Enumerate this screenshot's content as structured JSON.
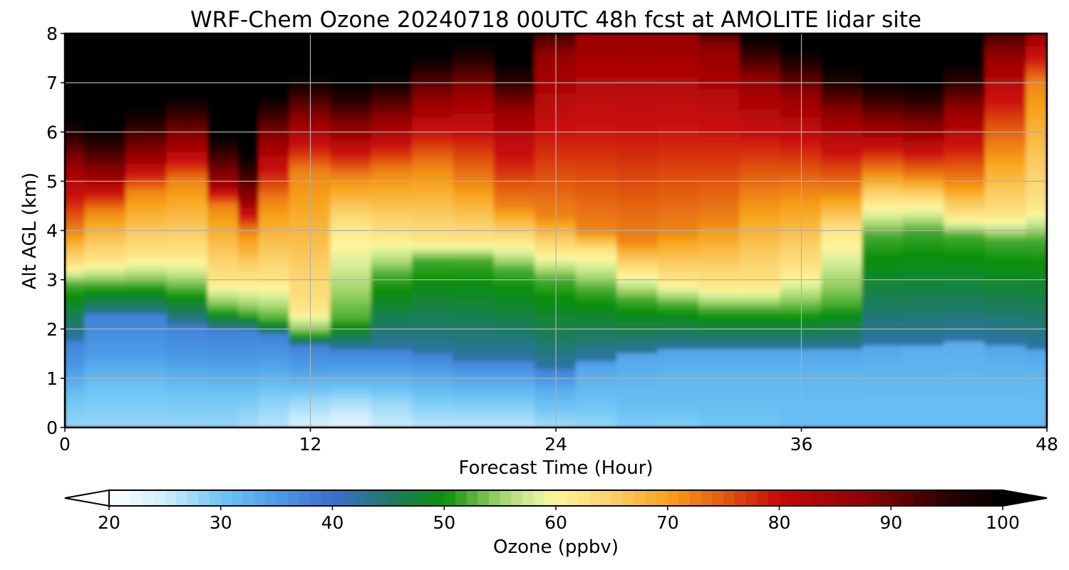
{
  "chart_data": {
    "type": "heatmap",
    "title": "WRF-Chem Ozone  20240718 00UTC 48h fcst at AMOLITE lidar site",
    "xlabel": "Forecast Time (Hour)",
    "ylabel": "Alt AGL (km)",
    "xlim": [
      0,
      48
    ],
    "ylim": [
      0,
      8
    ],
    "x_ticks": [
      "0",
      "12",
      "24",
      "36",
      "48"
    ],
    "y_ticks": [
      "0",
      "1",
      "2",
      "3",
      "4",
      "5",
      "6",
      "7",
      "8"
    ],
    "grid": true,
    "z_label": "Ozone  (ppbv)",
    "z_range": [
      20,
      100
    ],
    "z_ticks": [
      "20",
      "30",
      "40",
      "50",
      "60",
      "70",
      "80",
      "90",
      "100"
    ],
    "colorbar_extend": "both",
    "colormap": [
      {
        "value": 20,
        "color": "#ffffff"
      },
      {
        "value": 25,
        "color": "#cfeefd"
      },
      {
        "value": 30,
        "color": "#6ec6f5"
      },
      {
        "value": 35,
        "color": "#4c9be6"
      },
      {
        "value": 40,
        "color": "#3a6fd0"
      },
      {
        "value": 45,
        "color": "#1f7a6a"
      },
      {
        "value": 50,
        "color": "#0a8f0a"
      },
      {
        "value": 55,
        "color": "#9fd36a"
      },
      {
        "value": 58,
        "color": "#d9f09a"
      },
      {
        "value": 60,
        "color": "#fff59a"
      },
      {
        "value": 65,
        "color": "#fbd06a"
      },
      {
        "value": 70,
        "color": "#f7a21a"
      },
      {
        "value": 75,
        "color": "#e25a10"
      },
      {
        "value": 80,
        "color": "#c80808"
      },
      {
        "value": 88,
        "color": "#8a0404"
      },
      {
        "value": 95,
        "color": "#2a0000"
      },
      {
        "value": 100,
        "color": "#000000"
      }
    ],
    "x_hours": [
      0,
      2,
      4,
      6,
      8,
      9,
      10,
      12,
      14,
      16,
      18,
      20,
      22,
      24,
      26,
      28,
      30,
      32,
      34,
      36,
      38,
      40,
      42,
      44,
      46,
      48
    ],
    "altitudes_km": [
      0,
      0.25,
      0.5,
      0.75,
      1,
      1.25,
      1.5,
      1.75,
      2,
      2.25,
      2.5,
      2.75,
      3,
      3.25,
      3.5,
      3.75,
      4,
      4.25,
      4.5,
      4.75,
      5,
      5.25,
      5.5,
      5.75,
      6,
      6.25,
      6.5,
      6.75,
      7,
      7.25,
      7.5,
      7.75,
      8
    ],
    "profiles": [
      {
        "hour": 0,
        "z": [
          28,
          30,
          35,
          38
        ]
      },
      {
        "hour": 2,
        "z": [
          28,
          30,
          35,
          38
        ]
      },
      {
        "hour": 4,
        "z": [
          28,
          30,
          35,
          38
        ]
      },
      {
        "hour": 6,
        "z": [
          28,
          30,
          35,
          38
        ]
      },
      {
        "hour": 8,
        "z": [
          28,
          30,
          35,
          38
        ]
      },
      {
        "hour": 9,
        "z": [
          27,
          30,
          35,
          38
        ]
      },
      {
        "hour": 10,
        "z": [
          26,
          29,
          34,
          38
        ]
      },
      {
        "hour": 12,
        "z": [
          24,
          28,
          34,
          38
        ]
      },
      {
        "hour": 14,
        "z": [
          23,
          27,
          33,
          38
        ]
      },
      {
        "hour": 16,
        "z": [
          25,
          28,
          33,
          38
        ]
      },
      {
        "hour": 18,
        "z": [
          26,
          29,
          33,
          38
        ]
      },
      {
        "hour": 20,
        "z": [
          26,
          29,
          33,
          38
        ]
      },
      {
        "hour": 22,
        "z": [
          26,
          29,
          33,
          38
        ]
      },
      {
        "hour": 24,
        "z": [
          27,
          30,
          33,
          38
        ]
      },
      {
        "hour": 26,
        "z": [
          28,
          30,
          32,
          35
        ]
      },
      {
        "hour": 28,
        "z": [
          29,
          31,
          32,
          34
        ]
      },
      {
        "hour": 30,
        "z": [
          29,
          31,
          32,
          34
        ]
      },
      {
        "hour": 32,
        "z": [
          30,
          31,
          32,
          34
        ]
      },
      {
        "hour": 34,
        "z": [
          30,
          31,
          32,
          34
        ]
      },
      {
        "hour": 36,
        "z": [
          31,
          31,
          32,
          34
        ]
      },
      {
        "hour": 38,
        "z": [
          31,
          31,
          32,
          34
        ]
      },
      {
        "hour": 40,
        "z": [
          31,
          31,
          32,
          34
        ]
      },
      {
        "hour": 42,
        "z": [
          31,
          31,
          32,
          33
        ]
      },
      {
        "hour": 44,
        "z": [
          31,
          31,
          32,
          33
        ]
      },
      {
        "hour": 46,
        "z": [
          31,
          31,
          32,
          34
        ]
      },
      {
        "hour": 48,
        "z": [
          31,
          31,
          32,
          34
        ]
      }
    ],
    "transitions_km": [
      {
        "hour": 0,
        "blue_top": 1.8,
        "green_top": 2.9,
        "yellow_top": 3.3,
        "orange_top": 4.0,
        "red_top": 5.3
      },
      {
        "hour": 2,
        "blue_top": 2.3,
        "green_top": 2.9,
        "yellow_top": 3.4,
        "orange_top": 4.4,
        "red_top": 5.1
      },
      {
        "hour": 4,
        "blue_top": 2.3,
        "green_top": 2.9,
        "yellow_top": 3.5,
        "orange_top": 4.8,
        "red_top": 5.5
      },
      {
        "hour": 6,
        "blue_top": 2.1,
        "green_top": 2.8,
        "yellow_top": 3.5,
        "orange_top": 5.0,
        "red_top": 5.8
      },
      {
        "hour": 8,
        "blue_top": 2.0,
        "green_top": 2.4,
        "yellow_top": 3.0,
        "orange_top": 4.5,
        "red_top": 5.0
      },
      {
        "hour": 9,
        "blue_top": 2.0,
        "green_top": 2.3,
        "yellow_top": 3.0,
        "orange_top": 4.0,
        "red_top": 4.6
      },
      {
        "hour": 10,
        "blue_top": 1.9,
        "green_top": 2.2,
        "yellow_top": 3.0,
        "orange_top": 4.6,
        "red_top": 5.8
      },
      {
        "hour": 12,
        "blue_top": 1.7,
        "green_top": 1.9,
        "yellow_top": 2.4,
        "orange_top": 5.2,
        "red_top": 6.2
      },
      {
        "hour": 14,
        "blue_top": 1.6,
        "green_top": 2.2,
        "yellow_top": 4.1,
        "orange_top": 5.1,
        "red_top": 6.0
      },
      {
        "hour": 16,
        "blue_top": 1.6,
        "green_top": 3.1,
        "yellow_top": 3.9,
        "orange_top": 5.2,
        "red_top": 6.2
      },
      {
        "hour": 18,
        "blue_top": 1.5,
        "green_top": 3.4,
        "yellow_top": 3.8,
        "orange_top": 5.3,
        "red_top": 6.6
      },
      {
        "hour": 20,
        "blue_top": 1.4,
        "green_top": 3.4,
        "yellow_top": 3.8,
        "orange_top": 5.0,
        "red_top": 6.8
      },
      {
        "hour": 22,
        "blue_top": 1.4,
        "green_top": 3.2,
        "yellow_top": 3.8,
        "orange_top": 4.5,
        "red_top": 6.4
      },
      {
        "hour": 24,
        "blue_top": 1.2,
        "green_top": 3.0,
        "yellow_top": 3.6,
        "orange_top": 4.3,
        "red_top": 7.5
      },
      {
        "hour": 26,
        "blue_top": 1.4,
        "green_top": 2.8,
        "yellow_top": 3.6,
        "orange_top": 4.0,
        "red_top": 8.0
      },
      {
        "hour": 28,
        "blue_top": 1.5,
        "green_top": 2.6,
        "yellow_top": 3.2,
        "orange_top": 3.8,
        "red_top": 8.0
      },
      {
        "hour": 30,
        "blue_top": 1.6,
        "green_top": 2.5,
        "yellow_top": 3.0,
        "orange_top": 4.0,
        "red_top": 8.0
      },
      {
        "hour": 32,
        "blue_top": 1.6,
        "green_top": 2.4,
        "yellow_top": 2.9,
        "orange_top": 4.2,
        "red_top": 7.6
      },
      {
        "hour": 34,
        "blue_top": 1.6,
        "green_top": 2.4,
        "yellow_top": 2.9,
        "orange_top": 4.7,
        "red_top": 7.0
      },
      {
        "hour": 36,
        "blue_top": 1.6,
        "green_top": 2.4,
        "yellow_top": 3.2,
        "orange_top": 4.8,
        "red_top": 6.7
      },
      {
        "hour": 38,
        "blue_top": 1.6,
        "green_top": 2.5,
        "yellow_top": 4.0,
        "orange_top": 4.8,
        "red_top": 6.3
      },
      {
        "hour": 40,
        "blue_top": 1.7,
        "green_top": 3.9,
        "yellow_top": 4.6,
        "orange_top": 5.2,
        "red_top": 6.1
      },
      {
        "hour": 42,
        "blue_top": 1.7,
        "green_top": 4.0,
        "yellow_top": 4.6,
        "orange_top": 5.1,
        "red_top": 6.0
      },
      {
        "hour": 44,
        "blue_top": 1.8,
        "green_top": 3.9,
        "yellow_top": 4.3,
        "orange_top": 5.0,
        "red_top": 6.4
      },
      {
        "hour": 46,
        "blue_top": 1.7,
        "green_top": 3.8,
        "yellow_top": 4.3,
        "orange_top": 5.7,
        "red_top": 7.5
      },
      {
        "hour": 48,
        "blue_top": 1.6,
        "green_top": 3.8,
        "yellow_top": 4.5,
        "orange_top": 7.0,
        "red_top": 8.0
      }
    ]
  }
}
